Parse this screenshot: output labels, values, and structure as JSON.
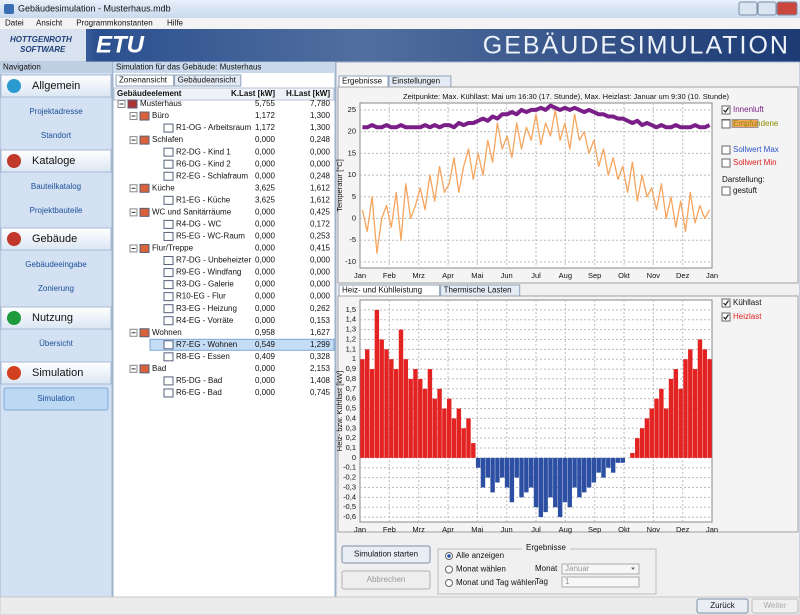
{
  "window": {
    "title": "Gebäudesimulation - Musterhaus.mdb",
    "menu": [
      "Datei",
      "Ansicht",
      "Programmkonstanten",
      "Hilfe"
    ]
  },
  "banner": {
    "logo_top": "HOTTGENROTH",
    "logo_bottom": "SOFTWARE",
    "product": "ETU",
    "title": "GEBÄUDESIMULATION"
  },
  "navigation": {
    "title": "Navigation",
    "sections": [
      {
        "label": "Allgemein",
        "items": [
          "Projektadresse",
          "Standort"
        ]
      },
      {
        "label": "Kataloge",
        "items": [
          "Bauteilkatalog",
          "Projektbauteile"
        ]
      },
      {
        "label": "Gebäude",
        "items": [
          "Gebäudeeingabe",
          "Zonierung"
        ]
      },
      {
        "label": "Nutzung",
        "items": [
          "Übersicht"
        ]
      },
      {
        "label": "Simulation",
        "items": [
          "Simulation"
        ],
        "selected": 0
      }
    ]
  },
  "zones": {
    "header": "Simulation für das Gebäude: Musterhaus",
    "tabs": [
      "Zonenansicht",
      "Gebäudeansicht"
    ],
    "columns": [
      "Gebäudeelement",
      "K.Last [kW]",
      "H.Last [kW]"
    ],
    "rows": [
      {
        "name": "Musterhaus",
        "k": "5,755",
        "h": "7,780",
        "children": [
          {
            "name": "Büro",
            "k": "1,172",
            "h": "1,300",
            "children": [
              {
                "name": "R1-OG - Arbeitsraum",
                "k": "1,172",
                "h": "1,300"
              }
            ]
          },
          {
            "name": "Schlafen",
            "k": "0,000",
            "h": "0,248",
            "children": [
              {
                "name": "R2-DG - Kind 1",
                "k": "0,000",
                "h": "0,000"
              },
              {
                "name": "R6-DG - Kind 2",
                "k": "0,000",
                "h": "0,000"
              },
              {
                "name": "R2-EG - Schlafraum",
                "k": "0,000",
                "h": "0,248"
              }
            ]
          },
          {
            "name": "Küche",
            "k": "3,625",
            "h": "1,612",
            "children": [
              {
                "name": "R1-EG - Küche",
                "k": "3,625",
                "h": "1,612"
              }
            ]
          },
          {
            "name": "WC und Sanitärräume",
            "k": "0,000",
            "h": "0,425",
            "children": [
              {
                "name": "R4-DG - WC",
                "k": "0,000",
                "h": "0,172"
              },
              {
                "name": "R5-EG - WC-Raum",
                "k": "0,000",
                "h": "0,253"
              }
            ]
          },
          {
            "name": "Flur/Treppe",
            "k": "0,000",
            "h": "0,415",
            "children": [
              {
                "name": "R7-DG - Unbeheizter",
                "k": "0,000",
                "h": "0,000"
              },
              {
                "name": "R9-EG - Windfang",
                "k": "0,000",
                "h": "0,000"
              },
              {
                "name": "R3-DG - Galerie",
                "k": "0,000",
                "h": "0,000"
              },
              {
                "name": "R10-EG - Flur",
                "k": "0,000",
                "h": "0,000"
              },
              {
                "name": "R3-EG - Heizung",
                "k": "0,000",
                "h": "0,262"
              },
              {
                "name": "R4-EG - Vorräte",
                "k": "0,000",
                "h": "0,153"
              }
            ]
          },
          {
            "name": "Wohnen",
            "k": "0,958",
            "h": "1,627",
            "children": [
              {
                "name": "R7-EG - Wohnen",
                "k": "0,549",
                "h": "1,299",
                "selected": true
              },
              {
                "name": "R8-EG - Essen",
                "k": "0,409",
                "h": "0,328"
              }
            ]
          },
          {
            "name": "Bad",
            "k": "0,000",
            "h": "2,153",
            "children": [
              {
                "name": "R5-DG - Bad",
                "k": "0,000",
                "h": "1,408"
              },
              {
                "name": "R6-EG - Bad",
                "k": "0,000",
                "h": "0,745"
              }
            ]
          }
        ]
      }
    ]
  },
  "results": {
    "tabs": [
      "Ergebnisse",
      "Einstellungen"
    ],
    "temperature_chart": {
      "type": "line",
      "title": "Zeitpunkte: Max. Kühllast: Mai um 16:30 (17. Stunde), Max. Heizlast: Januar um 9:30 (10. Stunde)",
      "y_label": "Temperatur [°C]",
      "categories": [
        "Jan",
        "Feb",
        "Mrz",
        "Apr",
        "Mai",
        "Jun",
        "Jul",
        "Aug",
        "Sep",
        "Okt",
        "Nov",
        "Dez",
        "Jan"
      ],
      "ylim": [
        -11.4,
        26.6
      ],
      "yticks": [
        -10,
        -5,
        0,
        5,
        10,
        15,
        20,
        25
      ],
      "grid": true,
      "series": [
        {
          "name": "Innenluft",
          "color": "#7a1f87",
          "checked": true,
          "values": [
            21,
            21,
            21.5,
            21,
            21,
            21.5,
            21,
            21,
            21.5,
            21,
            21,
            21,
            21,
            21.5,
            21,
            21.5,
            21,
            21.5,
            21.5,
            21,
            22,
            21.5,
            22,
            22,
            22.5,
            23,
            22.5,
            23.5,
            23,
            24,
            24,
            24.5,
            24,
            25,
            24.5,
            25,
            25,
            25.5,
            25,
            26,
            25.5,
            25,
            25.5,
            25,
            25.5,
            25,
            24.5,
            25,
            24.5,
            24,
            24,
            23.5,
            23.5,
            23,
            23,
            22.5,
            22,
            22.5,
            21.5,
            22,
            21.5,
            21,
            21.5,
            21,
            21,
            21.5,
            21,
            21,
            21,
            21.5,
            21,
            21,
            21.5
          ]
        },
        {
          "color": "#f6a55e",
          "checked": true,
          "values": [
            2,
            -3,
            5,
            -8,
            0,
            3,
            -2,
            6,
            -5,
            8,
            0,
            3,
            7,
            2,
            10,
            4,
            12,
            6,
            8,
            14,
            6,
            12,
            16,
            9,
            15,
            10,
            18,
            13,
            22,
            16,
            19,
            14,
            22,
            16,
            21,
            18,
            24,
            17,
            22,
            19,
            25,
            18,
            22,
            16,
            24,
            18,
            20,
            15,
            18,
            12,
            16,
            10,
            14,
            9,
            12,
            6,
            13,
            4,
            10,
            5,
            7,
            2,
            8,
            0,
            5,
            -2,
            4,
            -3,
            6,
            -1,
            3,
            0,
            2
          ]
        }
      ],
      "legend_more": [
        {
          "name": "Empfundene",
          "color": "#8c8c00"
        },
        {
          "name": "Sollwert Max",
          "color": "#2f55c8"
        },
        {
          "name": "Sollwert Min",
          "color": "#e02020"
        }
      ],
      "display_label": "Darstellung:",
      "stepped": "gestuft"
    },
    "load_tabs": [
      "Heiz- und Kühlleistung",
      "Thermische Lasten"
    ],
    "load_chart": {
      "type": "bar",
      "y_label": "Heiz- bzw. Kühllast [kW]",
      "categories": [
        "Jan",
        "Feb",
        "Mrz",
        "Apr",
        "Mai",
        "Jun",
        "Jul",
        "Aug",
        "Sep",
        "Okt",
        "Nov",
        "Dez",
        "Jan"
      ],
      "ylim": [
        -0.65,
        1.6
      ],
      "grid": true,
      "yticks": [
        {
          "value": -0.6,
          "label": "-0,6"
        },
        {
          "value": -0.5,
          "label": "-0,5"
        },
        {
          "value": -0.4,
          "label": "-0,4"
        },
        {
          "value": -0.3,
          "label": "-0,3"
        },
        {
          "value": -0.2,
          "label": "-0,2"
        },
        {
          "value": -0.1,
          "label": "-0,1"
        },
        0,
        {
          "value": 0.1,
          "label": "0,1"
        },
        {
          "value": 0.2,
          "label": "0,2"
        },
        {
          "value": 0.3,
          "label": "0,3"
        },
        {
          "value": 0.4,
          "label": "0,4"
        },
        {
          "value": 0.5,
          "label": "0,5"
        },
        {
          "value": 0.6,
          "label": "0,6"
        },
        {
          "value": 0.7,
          "label": "0,7"
        },
        {
          "value": 0.8,
          "label": "0,8"
        },
        {
          "value": 0.9,
          "label": "0,9"
        },
        1,
        {
          "value": 1.1,
          "label": "1,1"
        },
        {
          "value": 1.2,
          "label": "1,2"
        },
        {
          "value": 1.3,
          "label": "1,3"
        },
        {
          "value": 1.4,
          "label": "1,4"
        },
        {
          "value": 1.5,
          "label": "1,5"
        }
      ],
      "series": [
        {
          "name": "Kühllast",
          "color": "#2c4fa3",
          "checked": true,
          "values": [
            0,
            0,
            0,
            0,
            0,
            0,
            0,
            0,
            0,
            0,
            0,
            0,
            0,
            0,
            0,
            0,
            0,
            0,
            0,
            0,
            0,
            0,
            0,
            0,
            -0.1,
            -0.3,
            -0.2,
            -0.35,
            -0.25,
            -0.2,
            -0.3,
            -0.45,
            -0.2,
            -0.4,
            -0.35,
            -0.3,
            -0.5,
            -0.6,
            -0.55,
            -0.4,
            -0.5,
            -0.6,
            -0.45,
            -0.5,
            -0.3,
            -0.4,
            -0.35,
            -0.3,
            -0.25,
            -0.15,
            -0.2,
            -0.1,
            -0.15,
            -0.05,
            -0.05,
            0,
            0,
            0,
            0,
            0,
            0,
            0,
            0,
            0,
            0,
            0,
            0,
            0,
            0,
            0,
            0,
            0,
            0
          ]
        },
        {
          "name": "Heizlast",
          "color": "#e32222",
          "checked": true,
          "values": [
            1.0,
            1.1,
            0.9,
            1.5,
            1.2,
            1.1,
            1.0,
            0.9,
            1.3,
            1.0,
            0.8,
            0.9,
            0.8,
            0.7,
            0.9,
            0.6,
            0.7,
            0.5,
            0.6,
            0.4,
            0.5,
            0.3,
            0.4,
            0.15,
            0,
            0,
            0,
            0,
            0,
            0,
            0,
            0,
            0,
            0,
            0,
            0,
            0,
            0,
            0,
            0,
            0,
            0,
            0,
            0,
            0,
            0,
            0,
            0,
            0,
            0,
            0,
            0,
            0,
            0,
            0,
            0,
            0.05,
            0.2,
            0.3,
            0.4,
            0.5,
            0.6,
            0.7,
            0.5,
            0.8,
            0.9,
            0.7,
            1.0,
            1.1,
            0.9,
            1.2,
            1.1,
            1.0
          ]
        }
      ]
    },
    "controls": {
      "start": "Simulation starten",
      "cancel": "Abbrechen",
      "group": "Ergebnisse",
      "radios": [
        "Alle anzeigen",
        "Monat wählen",
        "Monat und Tag wählen"
      ],
      "selected": 0,
      "month_label": "Monat",
      "month_value": "Januar",
      "day_label": "Tag",
      "day_value": "1"
    }
  },
  "footer": {
    "back": "Zurück",
    "next": "Weiter"
  }
}
